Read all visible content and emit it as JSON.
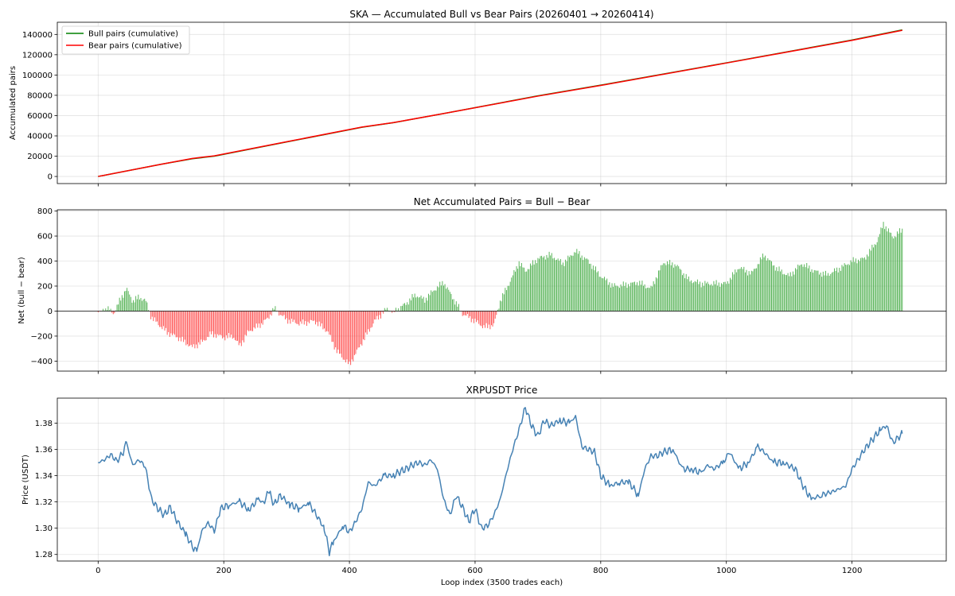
{
  "figure": {
    "xlabel": "Loop index (3500 trades each)"
  },
  "chart_data": [
    {
      "type": "line",
      "title": "SKA — Accumulated Bull vs Bear Pairs (20260401 → 20260414)",
      "ylabel": "Accumulated pairs",
      "xlim": [
        -65,
        1350
      ],
      "ylim": [
        -7000,
        152000
      ],
      "xticks": [
        0,
        200,
        400,
        600,
        800,
        1000,
        1200
      ],
      "yticks": [
        0,
        20000,
        40000,
        60000,
        80000,
        100000,
        120000,
        140000
      ],
      "ytick_labels": [
        "0",
        "20000",
        "40000",
        "60000",
        "80000",
        "100000",
        "120000",
        "140000"
      ],
      "grid": true,
      "legend": "upper-left",
      "series": [
        {
          "name": "Bull pairs (cumulative)",
          "color": "#008000",
          "x": [
            0,
            100,
            150,
            185,
            300,
            420,
            470,
            550,
            700,
            800,
            1000,
            1200,
            1280
          ],
          "y": [
            0,
            12000,
            17500,
            20000,
            34000,
            48500,
            53000,
            62000,
            79500,
            90000,
            112000,
            134500,
            144500
          ]
        },
        {
          "name": "Bear pairs (cumulative)",
          "color": "#ff0000",
          "x": [
            0,
            100,
            150,
            185,
            300,
            420,
            470,
            550,
            700,
            800,
            1000,
            1200,
            1280
          ],
          "y": [
            0,
            12000,
            17800,
            20300,
            34200,
            48700,
            53100,
            62000,
            79200,
            89700,
            111800,
            134200,
            144100
          ]
        }
      ]
    },
    {
      "type": "bar",
      "title": "Net Accumulated Pairs = Bull − Bear",
      "ylabel": "Net (bull − bear)",
      "ylim": [
        -480,
        810
      ],
      "yticks": [
        -400,
        -200,
        0,
        200,
        400,
        600,
        800
      ],
      "ytick_labels": [
        "−400",
        "−200",
        "0",
        "200",
        "400",
        "600",
        "800"
      ],
      "grid": true,
      "positive_color": "#2ca02c",
      "negative_color": "#ff2a2a",
      "x": [
        0,
        15,
        25,
        35,
        45,
        55,
        65,
        75,
        85,
        95,
        110,
        130,
        150,
        165,
        180,
        200,
        215,
        225,
        240,
        255,
        270,
        280,
        300,
        320,
        345,
        365,
        380,
        400,
        420,
        440,
        460,
        470,
        490,
        505,
        520,
        535,
        550,
        570,
        580,
        600,
        615,
        630,
        640,
        655,
        670,
        680,
        700,
        720,
        740,
        760,
        780,
        800,
        820,
        840,
        860,
        880,
        900,
        920,
        940,
        960,
        980,
        1000,
        1020,
        1040,
        1060,
        1080,
        1100,
        1120,
        1140,
        1160,
        1180,
        1200,
        1220,
        1240,
        1250,
        1265,
        1280
      ],
      "values": [
        -10,
        20,
        -20,
        90,
        180,
        80,
        110,
        90,
        -50,
        -100,
        -170,
        -220,
        -290,
        -250,
        -180,
        -210,
        -200,
        -280,
        -160,
        -120,
        -60,
        20,
        -70,
        -100,
        -80,
        -160,
        -320,
        -430,
        -250,
        -80,
        20,
        -10,
        60,
        130,
        90,
        170,
        230,
        60,
        -20,
        -80,
        -130,
        -110,
        80,
        230,
        390,
        320,
        420,
        450,
        380,
        480,
        400,
        280,
        200,
        210,
        230,
        180,
        390,
        370,
        250,
        220,
        220,
        220,
        350,
        300,
        450,
        340,
        280,
        380,
        320,
        290,
        340,
        400,
        420,
        560,
        700,
        590,
        650
      ]
    },
    {
      "type": "line",
      "title": "XRPUSDT Price",
      "ylabel": "Price (USDT)",
      "ylim": [
        1.275,
        1.399
      ],
      "yticks": [
        1.28,
        1.3,
        1.32,
        1.34,
        1.36,
        1.38
      ],
      "ytick_labels": [
        "1.28",
        "1.30",
        "1.32",
        "1.34",
        "1.36",
        "1.38"
      ],
      "grid": true,
      "series": [
        {
          "color": "#4682b4",
          "x": [
            0,
            10,
            20,
            30,
            40,
            45,
            55,
            65,
            75,
            85,
            95,
            105,
            115,
            125,
            140,
            150,
            157,
            165,
            175,
            185,
            195,
            210,
            225,
            240,
            255,
            265,
            270,
            280,
            290,
            305,
            320,
            335,
            345,
            360,
            368,
            375,
            390,
            400,
            410,
            420,
            430,
            440,
            455,
            470,
            480,
            490,
            500,
            510,
            520,
            530,
            540,
            550,
            560,
            570,
            580,
            590,
            600,
            610,
            620,
            630,
            640,
            650,
            660,
            670,
            680,
            690,
            700,
            710,
            720,
            735,
            750,
            760,
            770,
            780,
            790,
            800,
            815,
            830,
            845,
            860,
            870,
            880,
            890,
            900,
            915,
            930,
            945,
            960,
            970,
            980,
            995,
            1005,
            1020,
            1035,
            1050,
            1060,
            1075,
            1090,
            1110,
            1120,
            1135,
            1150,
            1170,
            1190,
            1200,
            1220,
            1245,
            1255,
            1265,
            1280
          ],
          "y": [
            1.35,
            1.352,
            1.356,
            1.351,
            1.358,
            1.365,
            1.348,
            1.352,
            1.347,
            1.322,
            1.315,
            1.31,
            1.316,
            1.306,
            1.295,
            1.286,
            1.282,
            1.298,
            1.304,
            1.298,
            1.315,
            1.318,
            1.32,
            1.314,
            1.322,
            1.319,
            1.33,
            1.318,
            1.325,
            1.318,
            1.315,
            1.319,
            1.312,
            1.3,
            1.282,
            1.29,
            1.302,
            1.297,
            1.305,
            1.315,
            1.335,
            1.332,
            1.34,
            1.34,
            1.343,
            1.345,
            1.348,
            1.35,
            1.348,
            1.352,
            1.345,
            1.322,
            1.31,
            1.325,
            1.316,
            1.305,
            1.315,
            1.3,
            1.302,
            1.31,
            1.322,
            1.342,
            1.36,
            1.375,
            1.392,
            1.378,
            1.37,
            1.382,
            1.378,
            1.382,
            1.38,
            1.385,
            1.362,
            1.36,
            1.358,
            1.34,
            1.332,
            1.335,
            1.335,
            1.325,
            1.345,
            1.355,
            1.355,
            1.358,
            1.36,
            1.345,
            1.345,
            1.342,
            1.348,
            1.345,
            1.35,
            1.358,
            1.345,
            1.35,
            1.362,
            1.358,
            1.35,
            1.35,
            1.345,
            1.334,
            1.322,
            1.325,
            1.328,
            1.332,
            1.345,
            1.36,
            1.375,
            1.378,
            1.365,
            1.372
          ]
        }
      ]
    }
  ]
}
